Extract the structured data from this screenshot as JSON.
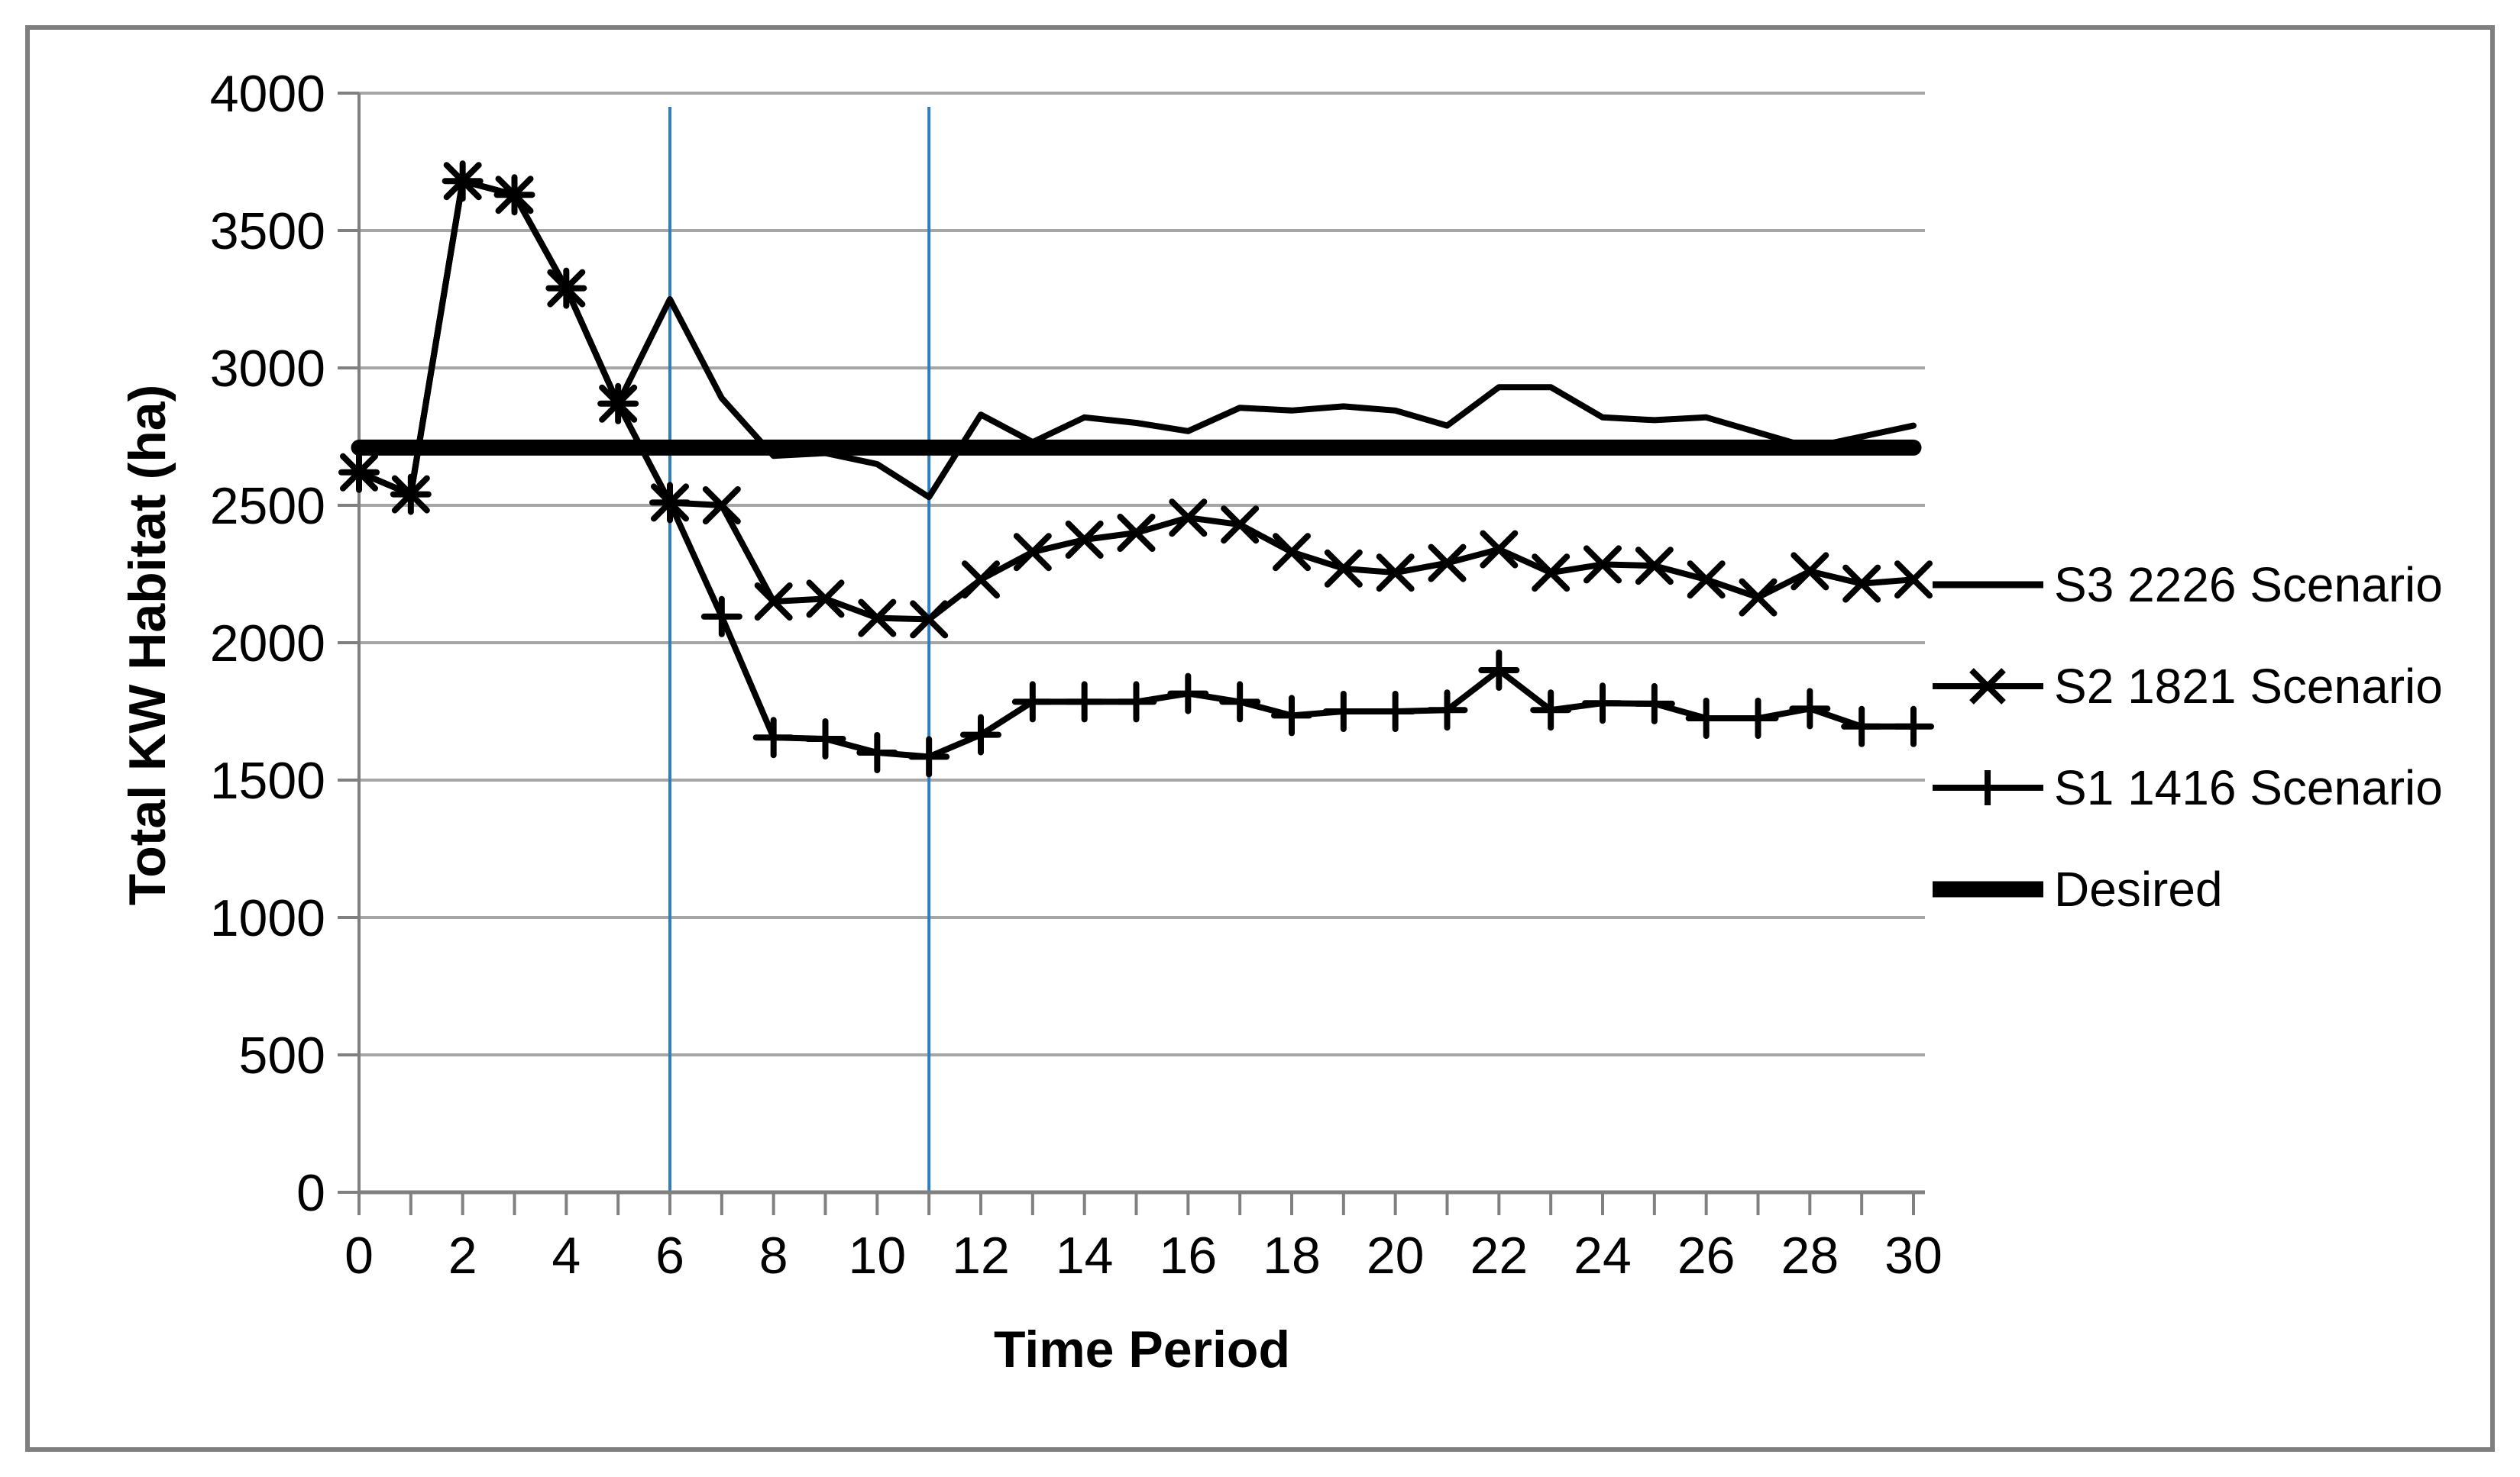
{
  "frame": {
    "border_color": "#7f7f7f",
    "background_color": "#ffffff"
  },
  "chart_data": {
    "type": "line",
    "title": "",
    "xlabel": "Time Period",
    "ylabel": "Total KW Habitat (ha)",
    "xlim": [
      0,
      30
    ],
    "ylim": [
      0,
      4000
    ],
    "x_minor_tick_step": 1,
    "x_tick_labels": [
      0,
      2,
      4,
      6,
      8,
      10,
      12,
      14,
      16,
      18,
      20,
      22,
      24,
      26,
      28,
      30
    ],
    "y_ticks": [
      0,
      500,
      1000,
      1500,
      2000,
      2500,
      3000,
      3500,
      4000
    ],
    "grid": "horizontal",
    "legend_position": "right",
    "colors": {
      "series": "#000000",
      "gridline": "#a6a6a6",
      "axis": "#808080",
      "reference_line": "#2e7ec1",
      "text": "#000000"
    },
    "x": [
      0,
      1,
      2,
      3,
      4,
      5,
      6,
      7,
      8,
      9,
      10,
      11,
      12,
      13,
      14,
      15,
      16,
      17,
      18,
      19,
      20,
      21,
      22,
      23,
      24,
      25,
      26,
      27,
      28,
      29,
      30
    ],
    "series": [
      {
        "name": "S3 2226 Scenario",
        "marker": "none",
        "line_width": "medium",
        "values": [
          2620,
          2540,
          3680,
          3630,
          3290,
          2870,
          3250,
          2890,
          2680,
          2690,
          2650,
          2530,
          2830,
          2730,
          2820,
          2800,
          2770,
          2855,
          2845,
          2860,
          2845,
          2790,
          2930,
          2930,
          2820,
          2810,
          2820,
          2765,
          2710,
          2750,
          2790
        ]
      },
      {
        "name": "S2 1821 Scenario",
        "marker": "x",
        "line_width": "medium",
        "values": [
          2620,
          2540,
          3680,
          3630,
          3290,
          2870,
          2510,
          2500,
          2150,
          2160,
          2090,
          2085,
          2230,
          2330,
          2375,
          2400,
          2455,
          2430,
          2330,
          2270,
          2255,
          2290,
          2340,
          2255,
          2285,
          2280,
          2230,
          2165,
          2260,
          2215,
          2230
        ]
      },
      {
        "name": "S1 1416 Scenario",
        "marker": "plus",
        "line_width": "medium",
        "values": [
          2620,
          2540,
          3680,
          3630,
          3290,
          2870,
          2510,
          2095,
          1655,
          1650,
          1600,
          1585,
          1665,
          1785,
          1785,
          1785,
          1815,
          1785,
          1735,
          1750,
          1750,
          1755,
          1900,
          1755,
          1780,
          1778,
          1725,
          1725,
          1760,
          1695,
          1695
        ]
      },
      {
        "name": "Desired",
        "marker": "none",
        "line_width": "thick",
        "type": "constant",
        "value": 2710
      }
    ],
    "reference_lines": {
      "vertical_x": [
        6,
        11
      ],
      "vertical_span": [
        0,
        3950
      ],
      "color": "#2e7ec1"
    }
  }
}
